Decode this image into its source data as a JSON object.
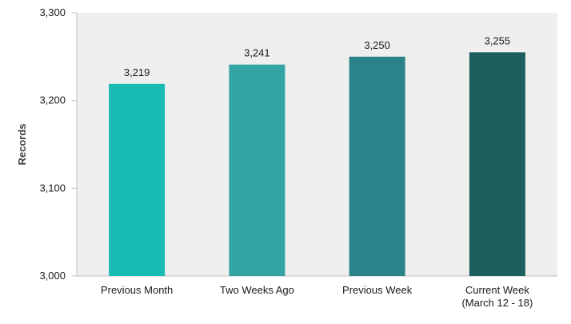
{
  "chart_data": {
    "type": "bar",
    "title": "",
    "xlabel": "",
    "ylabel": "Records",
    "categories": [
      [
        "Previous Month"
      ],
      [
        "Two Weeks Ago"
      ],
      [
        "Previous Week"
      ],
      [
        "Current Week",
        "(March 12 - 18)"
      ]
    ],
    "values": [
      3219,
      3241,
      3250,
      3255
    ],
    "value_labels": [
      "3,219",
      "3,241",
      "3,250",
      "3,255"
    ],
    "ylim": [
      3000,
      3300
    ],
    "yticks": [
      3000,
      3100,
      3200,
      3300
    ],
    "ytick_labels": [
      "3,000",
      "3,100",
      "3,200",
      "3,300"
    ],
    "colors": [
      "#19bbb2",
      "#33a3a3",
      "#2a8389",
      "#1c5f5d"
    ],
    "plot_background": "#efefef",
    "grid": false,
    "legend": "none"
  }
}
